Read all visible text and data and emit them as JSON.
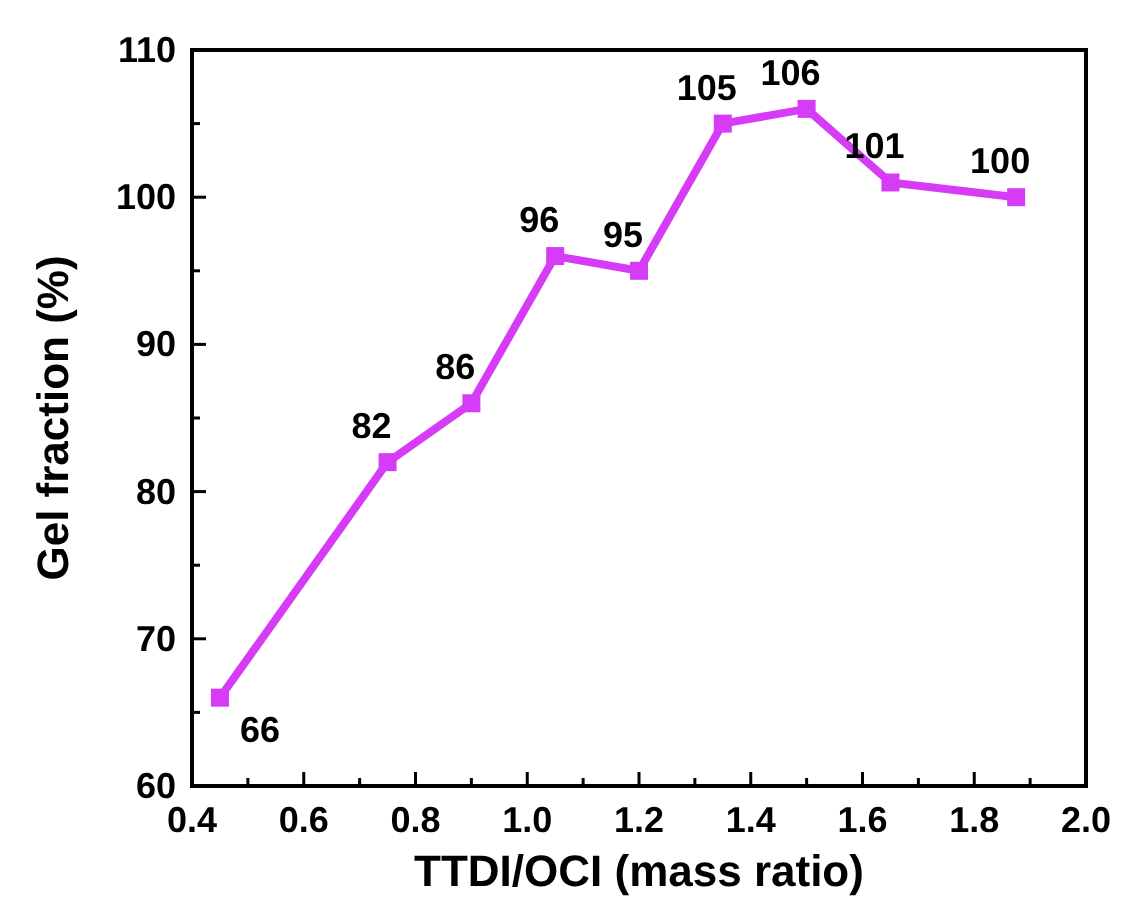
{
  "chart_data": {
    "type": "line",
    "xlabel": "TTDI/OCI (mass ratio)",
    "ylabel": "Gel fraction (%)",
    "x": [
      0.45,
      0.75,
      0.9,
      1.05,
      1.2,
      1.35,
      1.5,
      1.65,
      1.875
    ],
    "series": [
      {
        "color": "#d63cf5",
        "values": [
          66,
          82,
          86,
          96,
          95,
          105,
          106,
          101,
          100
        ]
      }
    ],
    "xlim": [
      0.4,
      2.0
    ],
    "ylim": [
      60,
      110
    ],
    "xticks": [
      {
        "value": 0.4,
        "label": "0.4"
      },
      {
        "value": 0.5,
        "label": null
      },
      {
        "value": 0.6,
        "label": "0.6"
      },
      {
        "value": 0.7,
        "label": null
      },
      {
        "value": 0.8,
        "label": "0.8"
      },
      {
        "value": 0.9,
        "label": null
      },
      {
        "value": 1.0,
        "label": "1.0"
      },
      {
        "value": 1.1,
        "label": null
      },
      {
        "value": 1.2,
        "label": "1.2"
      },
      {
        "value": 1.3,
        "label": null
      },
      {
        "value": 1.4,
        "label": "1.4"
      },
      {
        "value": 1.5,
        "label": null
      },
      {
        "value": 1.6,
        "label": "1.6"
      },
      {
        "value": 1.7,
        "label": null
      },
      {
        "value": 1.8,
        "label": "1.8"
      },
      {
        "value": 1.9,
        "label": null
      },
      {
        "value": 2.0,
        "label": "2.0"
      }
    ],
    "yticks": [
      60,
      {
        "value": 65,
        "label": null
      },
      70,
      {
        "value": 75,
        "label": null
      },
      80,
      {
        "value": 85,
        "label": null
      },
      90,
      {
        "value": 95,
        "label": null
      },
      100,
      {
        "value": 105,
        "label": null
      },
      110
    ],
    "marker": "square",
    "line_style": "solid",
    "data_labels": true,
    "grid": false
  }
}
